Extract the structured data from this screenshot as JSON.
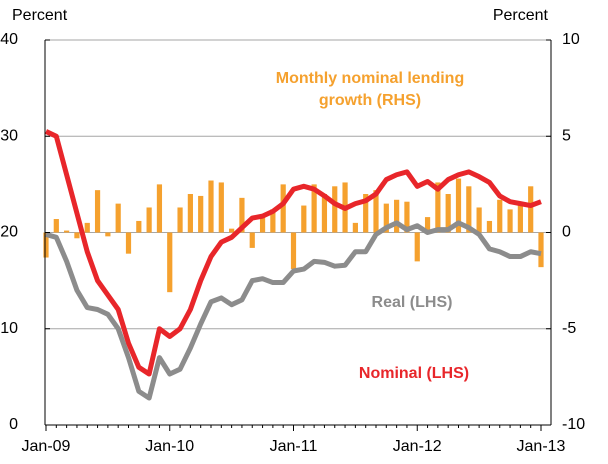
{
  "chart_data": {
    "type": "combo",
    "y_label": "Percent",
    "y2_label": "Percent",
    "categories": [
      "Jan-09",
      null,
      null,
      null,
      null,
      null,
      null,
      null,
      null,
      null,
      null,
      null,
      "Jan-10",
      null,
      null,
      null,
      null,
      null,
      null,
      null,
      null,
      null,
      null,
      null,
      "Jan-11",
      null,
      null,
      null,
      null,
      null,
      null,
      null,
      null,
      null,
      null,
      null,
      "Jan-12",
      null,
      null,
      null,
      null,
      null,
      null,
      null,
      null,
      null,
      null,
      null,
      "Jan-13"
    ],
    "series": [
      {
        "name": "Monthly nominal lending growth (RHS)",
        "type": "bar",
        "axis": "y2",
        "color": "#f5a12e",
        "values": [
          -1.3,
          0.7,
          0.1,
          -0.3,
          0.5,
          2.2,
          -0.2,
          1.5,
          -1.1,
          0.6,
          1.3,
          2.5,
          -3.1,
          1.3,
          2,
          1.9,
          2.7,
          2.6,
          0.2,
          1.8,
          -0.8,
          0.8,
          1.2,
          2.5,
          -1.9,
          1.4,
          2.5,
          2,
          2.4,
          2.6,
          0.5,
          2,
          2.2,
          1.5,
          1.7,
          1.6,
          -1.5,
          0.8,
          2.6,
          2,
          2.8,
          2.4,
          1.3,
          0.6,
          1.7,
          1.2,
          1.6,
          2.4,
          -1.8
        ]
      },
      {
        "name": "Nominal (LHS)",
        "type": "line",
        "color": "#e8262a",
        "values": [
          30.5,
          30,
          26,
          22,
          18,
          15,
          13.5,
          12,
          8.5,
          6,
          5.3,
          10,
          9.2,
          10,
          12,
          15,
          17.5,
          19,
          19.5,
          20.5,
          21.5,
          21.7,
          22.2,
          23,
          24.5,
          24.8,
          24.5,
          23.8,
          23,
          22.5,
          23,
          23.3,
          24,
          25.5,
          26,
          26.3,
          24.8,
          25.3,
          24.5,
          25.5,
          26,
          26.3,
          25.8,
          25.2,
          23.8,
          23.2,
          23,
          22.8,
          23.2
        ]
      },
      {
        "name": "Real (LHS)",
        "type": "line",
        "color": "#8c8c8c",
        "values": [
          19.8,
          19.5,
          17,
          14,
          12.2,
          12,
          11.5,
          10,
          7,
          3.5,
          2.8,
          7,
          5.3,
          5.8,
          8,
          10.5,
          12.8,
          13.2,
          12.5,
          13,
          15,
          15.2,
          14.8,
          14.8,
          16,
          16.2,
          17,
          16.9,
          16.5,
          16.6,
          18,
          18,
          19.8,
          20.5,
          21,
          20.3,
          20.7,
          20,
          20.3,
          20.3,
          21,
          20.5,
          19.8,
          18.3,
          18,
          17.5,
          17.5,
          18,
          17.8
        ]
      }
    ],
    "ylim": [
      0,
      40
    ],
    "yticks": [
      0,
      10,
      20,
      30,
      40
    ],
    "y2lim": [
      -10,
      10
    ],
    "y2ticks": [
      -10,
      -5,
      0,
      5,
      10
    ],
    "grid": true
  }
}
